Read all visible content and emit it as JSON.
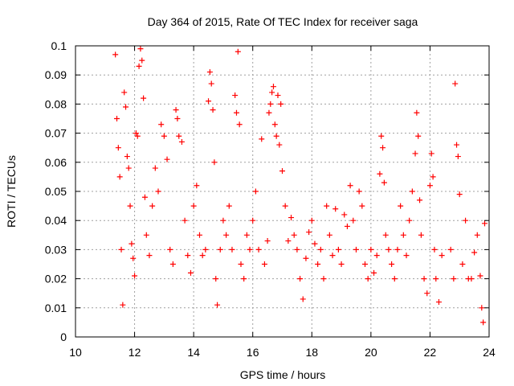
{
  "chart_data": {
    "type": "scatter",
    "title": "Day 364 of 2015, Rate Of TEC Index for receiver saga",
    "xlabel": "GPS time / hours",
    "ylabel": "ROTI / TECUs",
    "xlim": [
      10,
      24
    ],
    "ylim": [
      0,
      0.1
    ],
    "xticks": [
      10,
      12,
      14,
      16,
      18,
      20,
      22,
      24
    ],
    "xtick_labels": [
      "10",
      "12",
      "14",
      "16",
      "18",
      "20",
      "22",
      "24"
    ],
    "yticks": [
      0,
      0.01,
      0.02,
      0.03,
      0.04,
      0.05,
      0.06,
      0.07,
      0.08,
      0.09,
      0.1
    ],
    "ytick_labels": [
      "0",
      "0.01",
      "0.02",
      "0.03",
      "0.04",
      "0.05",
      "0.06",
      "0.07",
      "0.08",
      "0.09",
      "0.1"
    ],
    "grid": true,
    "marker": "plus",
    "color": "#ff0000",
    "series": [
      {
        "name": "ROTI",
        "points": [
          [
            11.35,
            0.097
          ],
          [
            11.4,
            0.075
          ],
          [
            11.45,
            0.065
          ],
          [
            11.5,
            0.055
          ],
          [
            11.55,
            0.03
          ],
          [
            11.6,
            0.011
          ],
          [
            11.65,
            0.084
          ],
          [
            11.7,
            0.079
          ],
          [
            11.75,
            0.062
          ],
          [
            11.8,
            0.058
          ],
          [
            11.85,
            0.045
          ],
          [
            11.9,
            0.032
          ],
          [
            11.95,
            0.027
          ],
          [
            12.0,
            0.021
          ],
          [
            12.05,
            0.07
          ],
          [
            12.1,
            0.069
          ],
          [
            12.15,
            0.093
          ],
          [
            12.2,
            0.099
          ],
          [
            12.25,
            0.095
          ],
          [
            12.3,
            0.082
          ],
          [
            12.35,
            0.048
          ],
          [
            12.4,
            0.035
          ],
          [
            12.5,
            0.028
          ],
          [
            12.6,
            0.045
          ],
          [
            12.7,
            0.058
          ],
          [
            12.8,
            0.05
          ],
          [
            12.9,
            0.073
          ],
          [
            13.0,
            0.069
          ],
          [
            13.1,
            0.061
          ],
          [
            13.2,
            0.03
          ],
          [
            13.3,
            0.025
          ],
          [
            13.4,
            0.078
          ],
          [
            13.45,
            0.075
          ],
          [
            13.5,
            0.069
          ],
          [
            13.6,
            0.067
          ],
          [
            13.7,
            0.04
          ],
          [
            13.8,
            0.028
          ],
          [
            13.9,
            0.022
          ],
          [
            14.0,
            0.045
          ],
          [
            14.1,
            0.052
          ],
          [
            14.2,
            0.035
          ],
          [
            14.3,
            0.028
          ],
          [
            14.4,
            0.03
          ],
          [
            14.5,
            0.081
          ],
          [
            14.55,
            0.091
          ],
          [
            14.6,
            0.087
          ],
          [
            14.65,
            0.078
          ],
          [
            14.7,
            0.06
          ],
          [
            14.75,
            0.02
          ],
          [
            14.8,
            0.011
          ],
          [
            14.9,
            0.03
          ],
          [
            15.0,
            0.04
          ],
          [
            15.1,
            0.035
          ],
          [
            15.2,
            0.045
          ],
          [
            15.3,
            0.03
          ],
          [
            15.4,
            0.083
          ],
          [
            15.45,
            0.077
          ],
          [
            15.5,
            0.098
          ],
          [
            15.55,
            0.073
          ],
          [
            15.6,
            0.025
          ],
          [
            15.7,
            0.02
          ],
          [
            15.8,
            0.035
          ],
          [
            15.9,
            0.03
          ],
          [
            16.0,
            0.04
          ],
          [
            16.1,
            0.05
          ],
          [
            16.2,
            0.03
          ],
          [
            16.3,
            0.068
          ],
          [
            16.4,
            0.025
          ],
          [
            16.5,
            0.033
          ],
          [
            16.55,
            0.077
          ],
          [
            16.6,
            0.08
          ],
          [
            16.65,
            0.084
          ],
          [
            16.7,
            0.086
          ],
          [
            16.75,
            0.073
          ],
          [
            16.8,
            0.069
          ],
          [
            16.85,
            0.083
          ],
          [
            16.9,
            0.066
          ],
          [
            16.95,
            0.08
          ],
          [
            17.0,
            0.057
          ],
          [
            17.1,
            0.045
          ],
          [
            17.2,
            0.033
          ],
          [
            17.3,
            0.041
          ],
          [
            17.4,
            0.035
          ],
          [
            17.5,
            0.03
          ],
          [
            17.6,
            0.02
          ],
          [
            17.7,
            0.013
          ],
          [
            17.8,
            0.027
          ],
          [
            17.9,
            0.036
          ],
          [
            18.0,
            0.04
          ],
          [
            18.1,
            0.032
          ],
          [
            18.2,
            0.025
          ],
          [
            18.3,
            0.03
          ],
          [
            18.4,
            0.02
          ],
          [
            18.5,
            0.045
          ],
          [
            18.6,
            0.035
          ],
          [
            18.7,
            0.028
          ],
          [
            18.8,
            0.044
          ],
          [
            18.9,
            0.03
          ],
          [
            19.0,
            0.025
          ],
          [
            19.1,
            0.042
          ],
          [
            19.2,
            0.038
          ],
          [
            19.3,
            0.052
          ],
          [
            19.4,
            0.04
          ],
          [
            19.5,
            0.03
          ],
          [
            19.6,
            0.05
          ],
          [
            19.7,
            0.045
          ],
          [
            19.8,
            0.025
          ],
          [
            19.9,
            0.02
          ],
          [
            20.0,
            0.03
          ],
          [
            20.1,
            0.022
          ],
          [
            20.2,
            0.028
          ],
          [
            20.3,
            0.056
          ],
          [
            20.35,
            0.069
          ],
          [
            20.4,
            0.065
          ],
          [
            20.45,
            0.053
          ],
          [
            20.5,
            0.035
          ],
          [
            20.6,
            0.03
          ],
          [
            20.7,
            0.025
          ],
          [
            20.8,
            0.02
          ],
          [
            20.9,
            0.03
          ],
          [
            21.0,
            0.045
          ],
          [
            21.1,
            0.035
          ],
          [
            21.2,
            0.028
          ],
          [
            21.3,
            0.04
          ],
          [
            21.4,
            0.05
          ],
          [
            21.5,
            0.063
          ],
          [
            21.55,
            0.077
          ],
          [
            21.6,
            0.069
          ],
          [
            21.65,
            0.047
          ],
          [
            21.7,
            0.035
          ],
          [
            21.8,
            0.02
          ],
          [
            21.9,
            0.015
          ],
          [
            22.0,
            0.052
          ],
          [
            22.05,
            0.063
          ],
          [
            22.1,
            0.055
          ],
          [
            22.15,
            0.03
          ],
          [
            22.2,
            0.02
          ],
          [
            22.3,
            0.012
          ],
          [
            22.4,
            0.028
          ],
          [
            22.7,
            0.03
          ],
          [
            22.8,
            0.02
          ],
          [
            22.85,
            0.087
          ],
          [
            22.9,
            0.066
          ],
          [
            22.95,
            0.062
          ],
          [
            23.0,
            0.049
          ],
          [
            23.1,
            0.025
          ],
          [
            23.2,
            0.04
          ],
          [
            23.3,
            0.02
          ],
          [
            23.4,
            0.02
          ],
          [
            23.5,
            0.029
          ],
          [
            23.6,
            0.035
          ],
          [
            23.7,
            0.021
          ],
          [
            23.75,
            0.01
          ],
          [
            23.8,
            0.005
          ],
          [
            23.85,
            0.039
          ]
        ]
      }
    ]
  }
}
